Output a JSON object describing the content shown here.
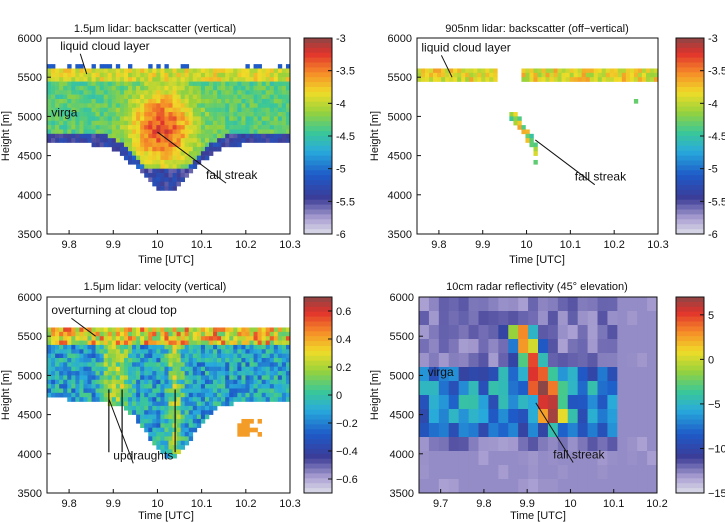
{
  "chart_data": [
    {
      "type": "heatmap",
      "title": "1.5μm lidar: backscatter (vertical)",
      "xlabel": "Time [UTC]",
      "ylabel": "Height [m]",
      "xlim": [
        9.75,
        10.3
      ],
      "ylim": [
        3500,
        6000
      ],
      "xticks": [
        "9.8",
        "9.9",
        "10",
        "10.1",
        "10.2",
        "10.3"
      ],
      "yticks": [
        "3500",
        "4000",
        "4500",
        "5000",
        "5500",
        "6000"
      ],
      "colorbar": {
        "ticks": [
          "-3",
          "-3.5",
          "-4",
          "-4.5",
          "-5",
          "-5.5",
          "-6"
        ],
        "min": -6,
        "max": -3
      },
      "annotations": [
        {
          "text": "liquid cloud layer",
          "at": [
            9.78,
            5850
          ],
          "points_to": [
            9.84,
            5540
          ]
        },
        {
          "text": "virga",
          "at": [
            9.76,
            5000
          ]
        },
        {
          "text": "fall streak",
          "at": [
            10.11,
            4200
          ],
          "points_to": [
            10.0,
            4800
          ]
        }
      ],
      "features": {
        "cloud_layer": [
          5450,
          5600
        ],
        "virga_base_edges": [
          4650,
          4050
        ],
        "fall_streak_center": 10.02
      }
    },
    {
      "type": "heatmap",
      "title": "905nm lidar: backscatter (off−vertical)",
      "xlabel": "Time [UTC]",
      "ylabel": "Height [m]",
      "xlim": [
        9.75,
        10.3
      ],
      "ylim": [
        3500,
        6000
      ],
      "xticks": [
        "9.8",
        "9.9",
        "10",
        "10.1",
        "10.2",
        "10.3"
      ],
      "yticks": [
        "3500",
        "4000",
        "4500",
        "5000",
        "5500",
        "6000"
      ],
      "colorbar": {
        "ticks": [
          "-3",
          "-3.5",
          "-4",
          "-4.5",
          "-5",
          "-5.5",
          "-6"
        ],
        "min": -6,
        "max": -3
      },
      "annotations": [
        {
          "text": "liquid cloud layer",
          "at": [
            9.76,
            5830
          ],
          "points_to": [
            9.83,
            5500
          ]
        },
        {
          "text": "fall streak",
          "at": [
            10.11,
            4180
          ],
          "points_to": [
            10.02,
            4700
          ]
        }
      ],
      "features": {
        "cloud_layer": [
          5420,
          5590
        ],
        "fall_streak_points": [
          [
            9.97,
            5000
          ],
          [
            9.98,
            4950
          ],
          [
            10.0,
            4800
          ],
          [
            10.01,
            4650
          ],
          [
            10.02,
            4420
          ],
          [
            10.25,
            5180
          ]
        ]
      }
    },
    {
      "type": "heatmap",
      "title": "1.5μm lidar: velocity (vertical)",
      "xlabel": "Time [UTC]",
      "ylabel": "Height [m]",
      "xlim": [
        9.75,
        10.3
      ],
      "ylim": [
        3500,
        6000
      ],
      "xticks": [
        "9.8",
        "9.9",
        "10",
        "10.1",
        "10.2",
        "10.3"
      ],
      "yticks": [
        "3500",
        "4000",
        "4500",
        "5000",
        "5500",
        "6000"
      ],
      "colorbar": {
        "ticks": [
          "0.6",
          "0.4",
          "0.2",
          "0",
          "−0.2",
          "−0.4",
          "−0.6"
        ],
        "min": -0.7,
        "max": 0.7
      },
      "annotations": [
        {
          "text": "overturning at cloud top",
          "at": [
            9.76,
            5780
          ],
          "points_to": [
            9.86,
            5500
          ]
        },
        {
          "text": "updraughts",
          "at": [
            9.9,
            3930
          ],
          "points_to": [
            9.89,
            4700
          ]
        }
      ],
      "features": {
        "updraught_lines_x": [
          9.89,
          9.92,
          10.04
        ]
      }
    },
    {
      "type": "heatmap",
      "title": "10cm radar reflectivity (45° elevation)",
      "xlabel": "Time [UTC]",
      "ylabel": "Height [m]",
      "xlim": [
        9.65,
        10.2
      ],
      "ylim": [
        3500,
        6000
      ],
      "xticks": [
        "9.7",
        "9.8",
        "9.9",
        "10",
        "10.1",
        "10.2"
      ],
      "yticks": [
        "3500",
        "4000",
        "4500",
        "5000",
        "5500",
        "6000"
      ],
      "colorbar": {
        "ticks": [
          "5",
          "0",
          "−5",
          "−10",
          "−15"
        ],
        "min": -15,
        "max": 7
      },
      "annotations": [
        {
          "text": "virga",
          "at": [
            9.67,
            4990
          ]
        },
        {
          "text": "fall streak",
          "at": [
            9.96,
            3940
          ],
          "points_to": [
            9.92,
            4650
          ]
        }
      ],
      "features": {
        "fall_streak_path": [
          [
            9.87,
            5650
          ],
          [
            9.89,
            5200
          ],
          [
            9.92,
            4800
          ],
          [
            9.96,
            4500
          ]
        ]
      }
    }
  ]
}
